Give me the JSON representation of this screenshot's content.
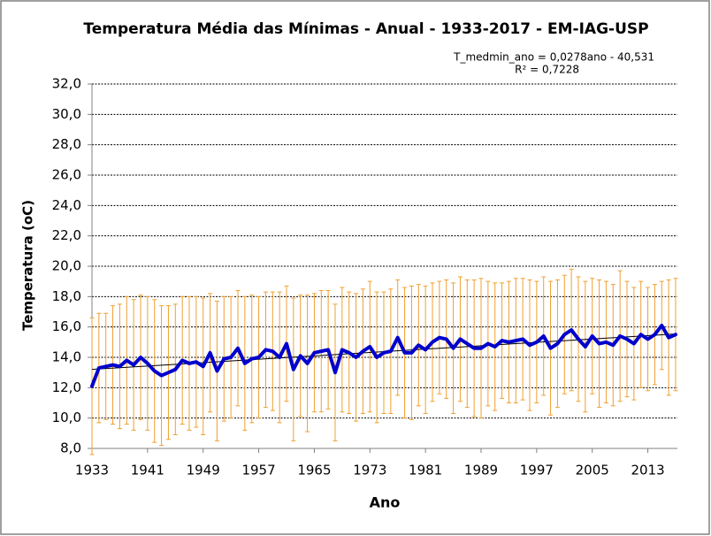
{
  "chart_data": {
    "type": "line",
    "title": "Temperatura Média das Mínimas  - Anual - 1933-2017 - EM-IAG-USP",
    "x_label": "Ano",
    "y_label": "Temperatura (oC)",
    "x": [
      1933,
      1934,
      1935,
      1936,
      1937,
      1938,
      1939,
      1940,
      1941,
      1942,
      1943,
      1944,
      1945,
      1946,
      1947,
      1948,
      1949,
      1950,
      1951,
      1952,
      1953,
      1954,
      1955,
      1956,
      1957,
      1958,
      1959,
      1960,
      1961,
      1962,
      1963,
      1964,
      1965,
      1966,
      1967,
      1968,
      1969,
      1970,
      1971,
      1972,
      1973,
      1974,
      1975,
      1976,
      1977,
      1978,
      1979,
      1980,
      1981,
      1982,
      1983,
      1984,
      1985,
      1986,
      1987,
      1988,
      1989,
      1990,
      1991,
      1992,
      1993,
      1994,
      1995,
      1996,
      1997,
      1998,
      1999,
      2000,
      2001,
      2002,
      2003,
      2004,
      2005,
      2006,
      2007,
      2008,
      2009,
      2010,
      2011,
      2012,
      2013,
      2014,
      2015,
      2016,
      2017
    ],
    "series": [
      {
        "color": "#0000cc",
        "error_color": "#f0a030",
        "values": [
          12.1,
          13.3,
          13.4,
          13.5,
          13.4,
          13.8,
          13.5,
          14.0,
          13.6,
          13.1,
          12.8,
          13.0,
          13.2,
          13.8,
          13.6,
          13.7,
          13.4,
          14.3,
          13.1,
          13.9,
          14.0,
          14.6,
          13.6,
          13.9,
          14.0,
          14.5,
          14.4,
          14.0,
          14.9,
          13.2,
          14.1,
          13.6,
          14.3,
          14.4,
          14.5,
          13.0,
          14.5,
          14.3,
          14.0,
          14.4,
          14.7,
          14.0,
          14.3,
          14.4,
          15.3,
          14.3,
          14.3,
          14.8,
          14.5,
          15.0,
          15.3,
          15.2,
          14.6,
          15.2,
          14.9,
          14.6,
          14.6,
          14.9,
          14.7,
          15.1,
          15.0,
          15.1,
          15.2,
          14.8,
          15.0,
          15.4,
          14.6,
          14.9,
          15.5,
          15.8,
          15.2,
          14.7,
          15.4,
          14.9,
          15.0,
          14.8,
          15.4,
          15.2,
          14.9,
          15.5,
          15.2,
          15.5,
          16.1,
          15.3,
          15.5
        ],
        "errors": [
          4.5,
          3.6,
          3.5,
          3.9,
          4.1,
          4.2,
          4.3,
          4.1,
          4.4,
          4.7,
          4.6,
          4.4,
          4.3,
          4.2,
          4.4,
          4.3,
          4.5,
          3.9,
          4.6,
          4.1,
          4.0,
          3.8,
          4.4,
          4.2,
          4.0,
          3.8,
          3.9,
          4.3,
          3.8,
          4.7,
          4.0,
          4.5,
          3.9,
          4.0,
          3.9,
          4.5,
          4.1,
          4.0,
          4.2,
          4.1,
          4.3,
          4.3,
          4.0,
          4.1,
          3.8,
          4.3,
          4.4,
          4.0,
          4.2,
          3.9,
          3.7,
          3.9,
          4.3,
          4.1,
          4.2,
          4.5,
          4.6,
          4.1,
          4.2,
          3.8,
          4.0,
          4.1,
          4.0,
          4.3,
          4.0,
          3.9,
          4.4,
          4.2,
          3.9,
          4.0,
          4.1,
          4.3,
          3.8,
          4.2,
          4.0,
          4.0,
          4.3,
          3.8,
          3.7,
          3.5,
          3.4,
          3.3,
          2.9,
          3.8,
          3.7
        ]
      }
    ],
    "trendline": {
      "slope": 0.0278,
      "intercept": -40.531,
      "color": "#000000",
      "equation": "T_medmin_ano = 0,0278ano  - 40,531",
      "r2": "R² = 0,7228"
    },
    "xlim": [
      1933,
      2017
    ],
    "xticks": [
      1933,
      1941,
      1949,
      1957,
      1965,
      1973,
      1981,
      1989,
      1997,
      2005,
      2013
    ],
    "ylim": [
      8,
      32
    ],
    "yticks": [
      {
        "value": 8,
        "label": "8,0"
      },
      {
        "value": 10,
        "label": "10,0"
      },
      {
        "value": 12,
        "label": "12,0"
      },
      {
        "value": 14,
        "label": "14,0"
      },
      {
        "value": 16,
        "label": "16,0"
      },
      {
        "value": 18,
        "label": "18,0"
      },
      {
        "value": 20,
        "label": "20,0"
      },
      {
        "value": 22,
        "label": "22,0"
      },
      {
        "value": 24,
        "label": "24,0"
      },
      {
        "value": 26,
        "label": "26,0"
      },
      {
        "value": 28,
        "label": "28,0"
      },
      {
        "value": 30,
        "label": "30,0"
      },
      {
        "value": 32,
        "label": "32,0"
      }
    ],
    "grid": true
  }
}
